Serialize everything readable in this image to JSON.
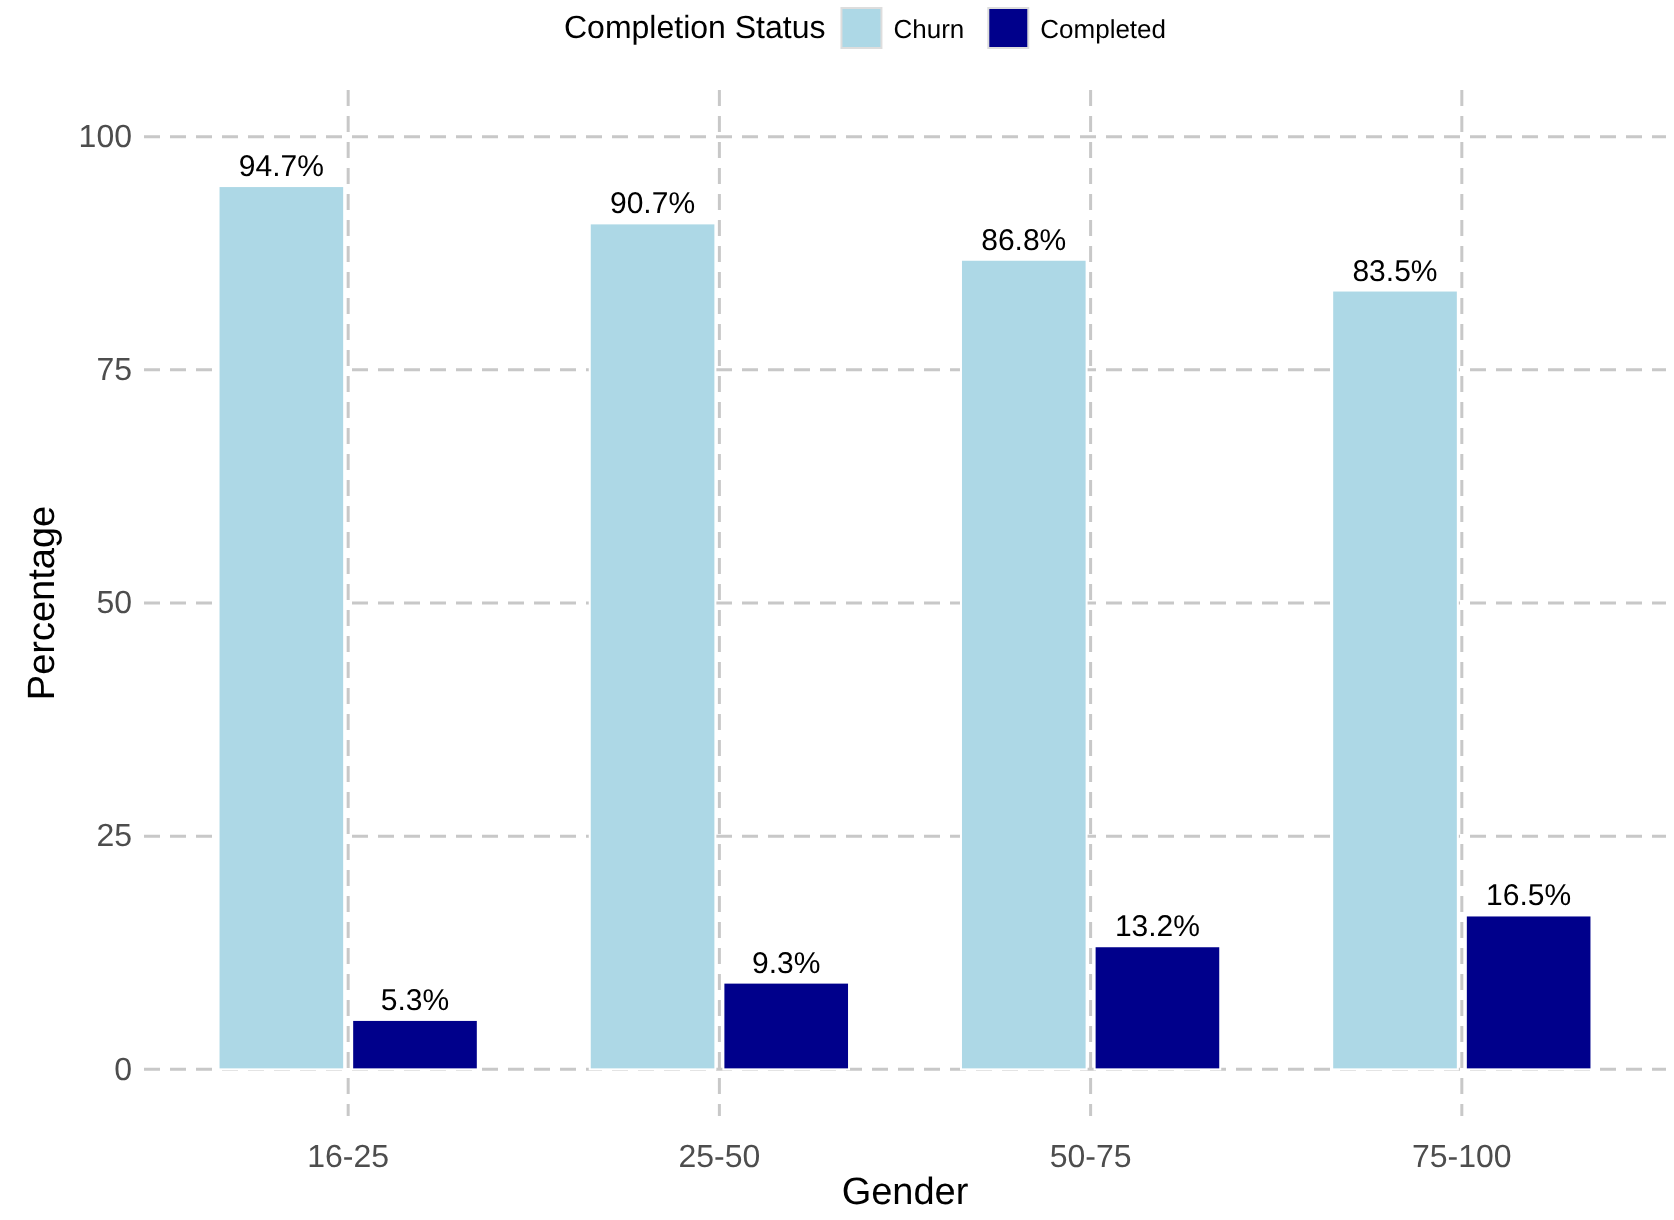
{
  "chart_data": {
    "type": "bar",
    "xlabel": "Gender",
    "ylabel": "Percentage",
    "legend_title": "Completion Status",
    "legend": "top",
    "categories": [
      "16-25",
      "25-50",
      "50-75",
      "75-100"
    ],
    "series": [
      {
        "name": "Churn",
        "color": "#add8e6",
        "values": [
          94.7,
          90.7,
          86.8,
          83.5
        ],
        "value_labels": [
          "94.7%",
          "90.7%",
          "86.8%",
          "83.5%"
        ]
      },
      {
        "name": "Completed",
        "color": "#00008b",
        "values": [
          5.3,
          9.3,
          13.2,
          16.5
        ],
        "value_labels": [
          "5.3%",
          "9.3%",
          "13.2%",
          "16.5%"
        ]
      }
    ],
    "ylim": [
      -5,
      105
    ],
    "yticks": [
      0,
      25,
      50,
      75,
      100
    ],
    "grid": true
  }
}
